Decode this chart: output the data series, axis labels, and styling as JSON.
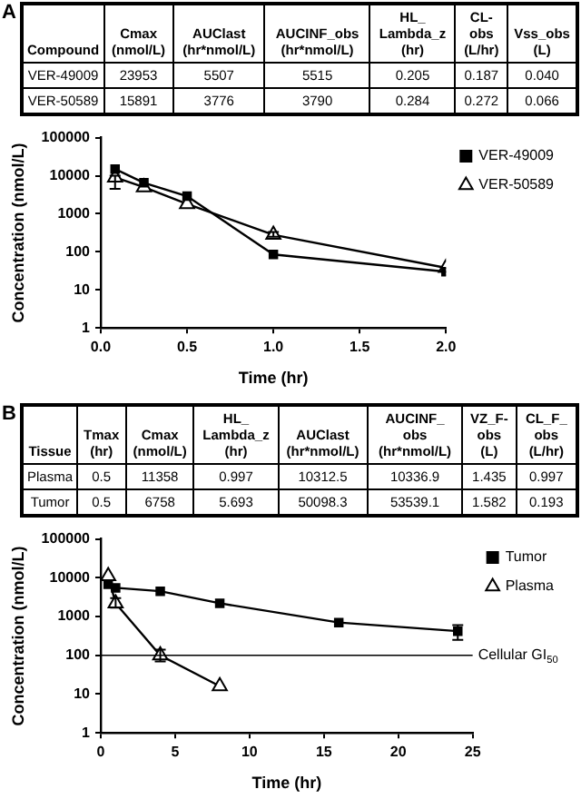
{
  "chart_data": [
    {
      "type": "other",
      "title": "A",
      "categories": [
        "Compound",
        "Cmax (nmol/L)",
        "AUClast (hr*nmol/L)",
        "AUCINF_obs (hr*nmol/L)",
        "HL_ Lambda_z (hr)",
        "CL-obs (L/hr)",
        "Vss_obs (L)"
      ],
      "cell_labels": [
        [
          "VER-49009",
          "23953",
          "5507",
          "5515",
          "0.205",
          "0.187",
          "0.040"
        ],
        [
          "VER-50589",
          "15891",
          "3776",
          "3790",
          "0.284",
          "0.272",
          "0.066"
        ]
      ]
    },
    {
      "type": "line",
      "xlabel": "Time (hr)",
      "ylabel": "Concentration (nmol/L)",
      "log": "y",
      "grid": false,
      "legend": "top right",
      "xlim": [
        0,
        2
      ],
      "xticks": [
        {
          "value": 0,
          "label": "0.0"
        },
        {
          "value": 0.5,
          "label": "0.5"
        },
        {
          "value": 1,
          "label": "1.0"
        },
        {
          "value": 1.5,
          "label": "1.5"
        },
        {
          "value": 2,
          "label": "2.0"
        }
      ],
      "ylim": [
        1,
        100000
      ],
      "yticks": [
        1,
        10,
        100,
        1000,
        10000,
        100000
      ],
      "series": [
        {
          "name": "VER-49009",
          "color": "#000000",
          "marker": "square",
          "x": [
            0.083,
            0.25,
            0.5,
            1,
            2
          ],
          "values": [
            15000,
            6500,
            2900,
            85,
            30
          ]
        },
        {
          "name": "VER-50589",
          "color": "#000000",
          "marker": "triangle",
          "x": [
            0.083,
            0.25,
            0.5,
            1,
            2
          ],
          "values": [
            9000,
            5000,
            1800,
            280,
            38
          ],
          "errors": [
            [
              4500,
              10000
            ],
            null,
            null,
            [
              250,
              330
            ],
            null
          ]
        }
      ]
    },
    {
      "type": "other",
      "title": "B",
      "categories": [
        "Tissue",
        "Tmax (hr)",
        "Cmax (nmol/L)",
        "HL_ Lambda_z (hr)",
        "AUClast (hr*nmol/L)",
        "AUCINF_ obs (hr*nmol/L)",
        "VZ_F- obs (L)",
        "CL_F_ obs (L/hr)"
      ],
      "cell_labels": [
        [
          "Plasma",
          "0.5",
          "11358",
          "0.997",
          "10312.5",
          "10336.9",
          "1.435",
          "0.997"
        ],
        [
          "Tumor",
          "0.5",
          "6758",
          "5.693",
          "50098.3",
          "53539.1",
          "1.582",
          "0.193"
        ]
      ]
    },
    {
      "type": "line",
      "xlabel": "Time (hr)",
      "ylabel": "Concentration (nmol/L)",
      "log": "y",
      "grid": false,
      "legend": "top right",
      "xlim": [
        0,
        25
      ],
      "xticks": [
        0,
        5,
        10,
        15,
        20,
        25
      ],
      "ylim": [
        1,
        100000
      ],
      "yticks": [
        1,
        10,
        100,
        1000,
        10000,
        100000
      ],
      "ref_lines": [
        {
          "axis": "y",
          "value": 100,
          "label": "Cellular GI$_{50}$",
          "color": "#000000"
        }
      ],
      "series": [
        {
          "name": "Tumor",
          "color": "#000000",
          "marker": "square",
          "x": [
            0.5,
            1,
            4,
            8,
            16,
            24
          ],
          "values": [
            6800,
            5500,
            4500,
            2200,
            700,
            420
          ],
          "errors": [
            null,
            null,
            null,
            null,
            null,
            [
              250,
              600
            ]
          ]
        },
        {
          "name": "Plasma",
          "color": "#000000",
          "marker": "triangle",
          "x": [
            0.5,
            1,
            4,
            8
          ],
          "values": [
            11000,
            2200,
            100,
            16
          ],
          "errors": [
            null,
            [
              1700,
              3000
            ],
            [
              70,
              140
            ],
            null
          ]
        }
      ]
    }
  ]
}
